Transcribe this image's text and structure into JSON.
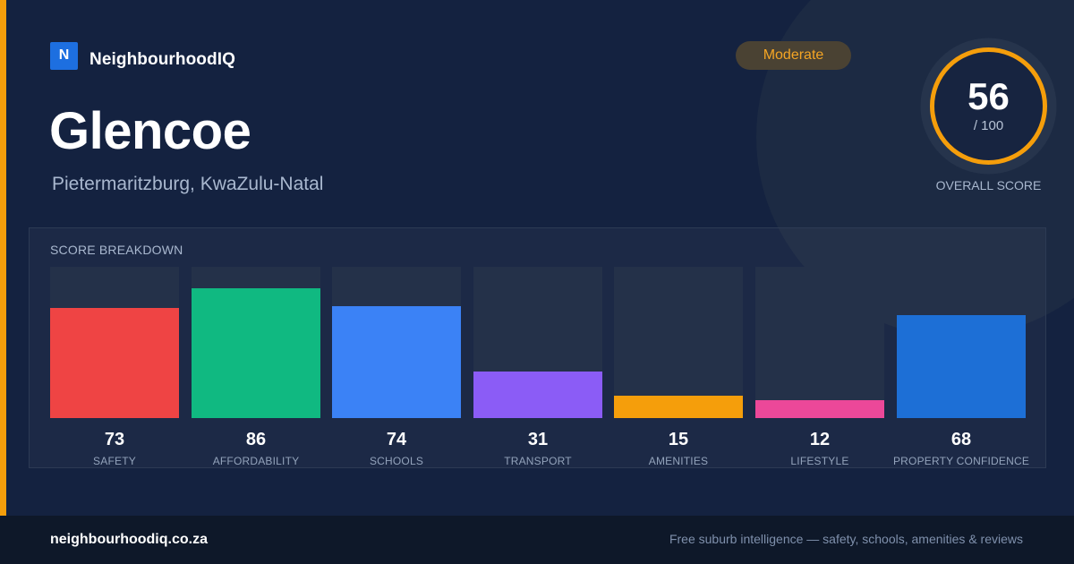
{
  "brand": {
    "logo_letter": "N",
    "name": "NeighbourhoodIQ"
  },
  "suburb": {
    "name": "Glencoe",
    "location": "Pietermaritzburg, KwaZulu-Natal"
  },
  "rating_badge": {
    "label": "Moderate",
    "color": "#f5a524"
  },
  "overall": {
    "score": "56",
    "max_label": "/ 100",
    "label": "OVERALL SCORE",
    "score_value": 56,
    "max_value": 100,
    "ring_color": "#f59e0b"
  },
  "breakdown": {
    "title": "SCORE BREAKDOWN"
  },
  "chart_data": {
    "type": "bar",
    "title": "SCORE BREAKDOWN",
    "categories": [
      "SAFETY",
      "AFFORDABILITY",
      "SCHOOLS",
      "TRANSPORT",
      "AMENITIES",
      "LIFESTYLE",
      "PROPERTY CONFIDENCE"
    ],
    "values": [
      73,
      86,
      74,
      31,
      15,
      12,
      68
    ],
    "ylim": [
      0,
      100
    ],
    "colors": [
      "#ef4444",
      "#10b981",
      "#3b82f6",
      "#8b5cf6",
      "#f59e0b",
      "#ec4899",
      "#1d6fd6"
    ],
    "grid": false
  },
  "footer": {
    "domain": "neighbourhoodiq.co.za",
    "tagline": "Free suburb intelligence — safety, schools, amenities & reviews"
  }
}
